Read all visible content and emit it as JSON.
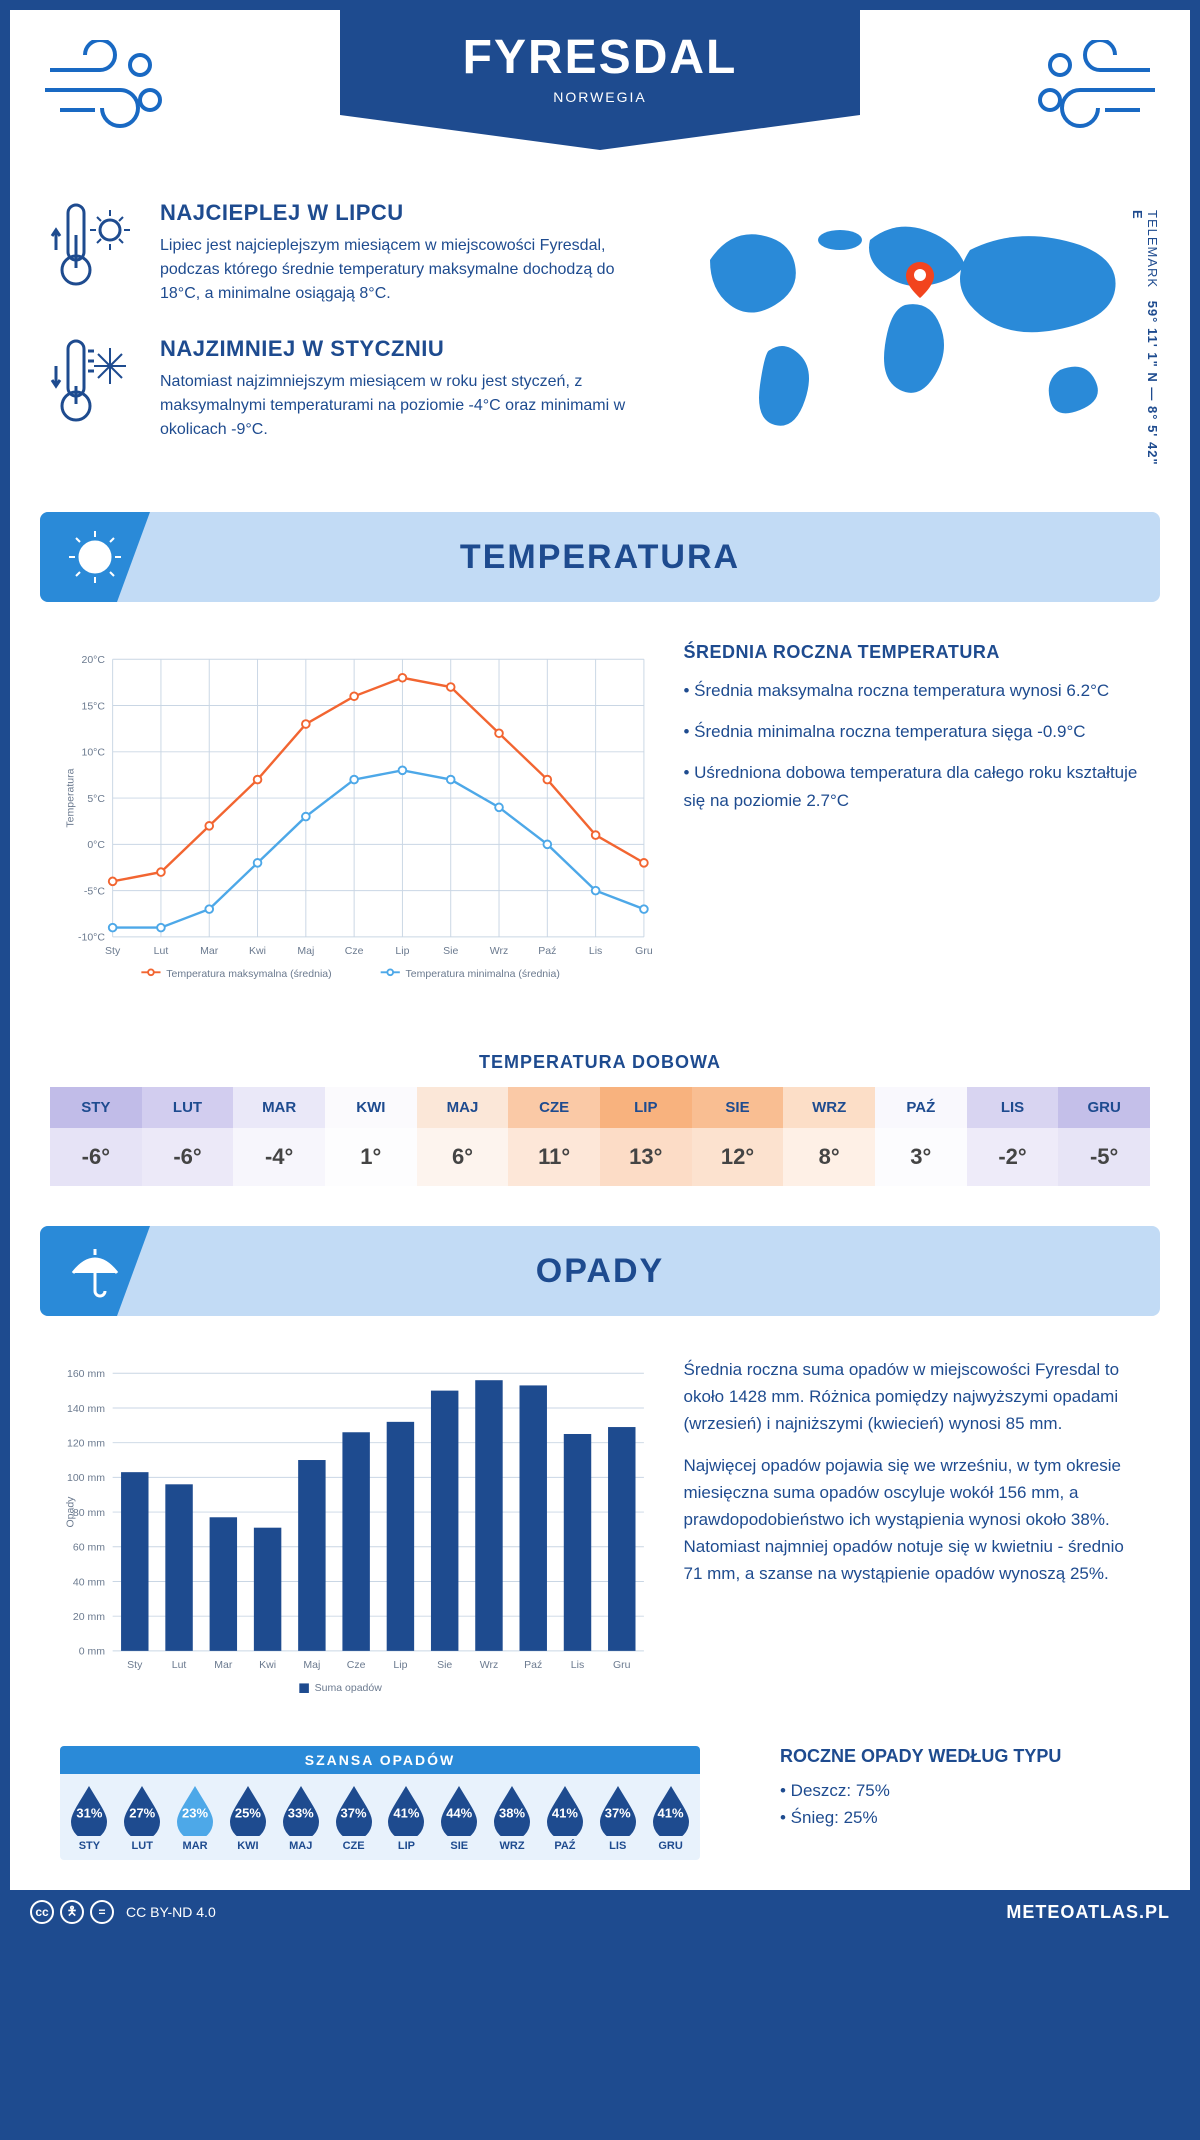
{
  "header": {
    "title": "FYRESDAL",
    "subtitle": "NORWEGIA"
  },
  "warm": {
    "title": "NAJCIEPLEJ W LIPCU",
    "text": "Lipiec jest najcieplejszym miesiącem w miejscowości Fyresdal, podczas którego średnie temperatury maksymalne dochodzą do 18°C, a minimalne osiągają 8°C."
  },
  "cold": {
    "title": "NAJZIMNIEJ W STYCZNIU",
    "text": "Natomiast najzimniejszym miesiącem w roku jest styczeń, z maksymalnymi temperaturami na poziomie -4°C oraz minimami w okolicach -9°C."
  },
  "coords": "59° 11' 1\" N — 8° 5' 42\" E",
  "region": "TELEMARK",
  "temp_section_title": "TEMPERATURA",
  "temp_chart": {
    "type": "line",
    "months": [
      "Sty",
      "Lut",
      "Mar",
      "Kwi",
      "Maj",
      "Cze",
      "Lip",
      "Sie",
      "Wrz",
      "Paź",
      "Lis",
      "Gru"
    ],
    "max_series": [
      -4,
      -3,
      2,
      7,
      13,
      16,
      18,
      17,
      12,
      7,
      1,
      -2
    ],
    "min_series": [
      -9,
      -9,
      -7,
      -2,
      3,
      7,
      8,
      7,
      4,
      0,
      -5,
      -7
    ],
    "max_color": "#f26531",
    "min_color": "#4da8e8",
    "grid_color": "#c9d6e4",
    "ylabel": "Temperatura",
    "ymin": -10,
    "ymax": 20,
    "ystep": 5,
    "legend_max": "Temperatura maksymalna (średnia)",
    "legend_min": "Temperatura minimalna (średnia)"
  },
  "avg_temp": {
    "title": "ŚREDNIA ROCZNA TEMPERATURA",
    "b1": "• Średnia maksymalna roczna temperatura wynosi 6.2°C",
    "b2": "• Średnia minimalna roczna temperatura sięga -0.9°C",
    "b3": "• Uśredniona dobowa temperatura dla całego roku kształtuje się na poziomie 2.7°C"
  },
  "daily": {
    "title": "TEMPERATURA DOBOWA",
    "months": [
      "STY",
      "LUT",
      "MAR",
      "KWI",
      "MAJ",
      "CZE",
      "LIP",
      "SIE",
      "WRZ",
      "PAŹ",
      "LIS",
      "GRU"
    ],
    "values": [
      "-6°",
      "-6°",
      "-4°",
      "1°",
      "6°",
      "11°",
      "13°",
      "12°",
      "8°",
      "3°",
      "-2°",
      "-5°"
    ],
    "head_colors": [
      "#c1bce8",
      "#d2cdef",
      "#eae8f8",
      "#fbfafd",
      "#fbe7d8",
      "#fac9a6",
      "#f8b27e",
      "#f9be92",
      "#fcdec7",
      "#f9f8fd",
      "#d8d4f1",
      "#c4bfe9"
    ],
    "val_colors": [
      "#e6e3f6",
      "#ece9f8",
      "#f7f6fc",
      "#fdfdfe",
      "#fdf4ee",
      "#fde7d8",
      "#fcdcc6",
      "#fce2cf",
      "#fef0e6",
      "#fcfcfe",
      "#eeebf9",
      "#e7e4f6"
    ]
  },
  "opady_section_title": "OPADY",
  "precip_chart": {
    "type": "bar",
    "months": [
      "Sty",
      "Lut",
      "Mar",
      "Kwi",
      "Maj",
      "Cze",
      "Lip",
      "Sie",
      "Wrz",
      "Paź",
      "Lis",
      "Gru"
    ],
    "values": [
      103,
      96,
      77,
      71,
      110,
      126,
      132,
      150,
      156,
      153,
      125,
      129
    ],
    "bar_color": "#1e4b8f",
    "grid_color": "#c9d6e4",
    "ymin": 0,
    "ymax": 160,
    "ystep": 20,
    "ylabel": "Opady",
    "legend": "Suma opadów"
  },
  "precip_text": {
    "p1": "Średnia roczna suma opadów w miejscowości Fyresdal to około 1428 mm. Różnica pomiędzy najwyższymi opadami (wrzesień) i najniższymi (kwiecień) wynosi 85 mm.",
    "p2": "Najwięcej opadów pojawia się we wrześniu, w tym okresie miesięczna suma opadów oscyluje wokół 156 mm, a prawdopodobieństwo ich wystąpienia wynosi około 38%. Natomiast najmniej opadów notuje się w kwietniu - średnio 71 mm, a szanse na wystąpienie opadów wynoszą 25%."
  },
  "chance": {
    "title": "SZANSA OPADÓW",
    "months": [
      "STY",
      "LUT",
      "MAR",
      "KWI",
      "MAJ",
      "CZE",
      "LIP",
      "SIE",
      "WRZ",
      "PAŹ",
      "LIS",
      "GRU"
    ],
    "values": [
      "31%",
      "27%",
      "23%",
      "25%",
      "33%",
      "37%",
      "41%",
      "44%",
      "38%",
      "41%",
      "37%",
      "41%"
    ],
    "min_index": 2,
    "dark_color": "#1e4b8f",
    "light_color": "#4da8e8"
  },
  "precip_type": {
    "title": "ROCZNE OPADY WEDŁUG TYPU",
    "l1": "• Deszcz: 75%",
    "l2": "• Śnieg: 25%"
  },
  "footer": {
    "license": "CC BY-ND 4.0",
    "site": "METEOATLAS.PL"
  }
}
